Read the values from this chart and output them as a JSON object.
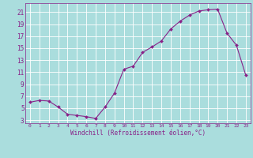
{
  "x": [
    0,
    1,
    2,
    3,
    4,
    5,
    6,
    7,
    8,
    9,
    10,
    11,
    12,
    13,
    14,
    15,
    16,
    17,
    18,
    19,
    20,
    21,
    22,
    23
  ],
  "y": [
    6.0,
    6.3,
    6.2,
    5.2,
    4.0,
    3.8,
    3.6,
    3.3,
    5.2,
    7.5,
    11.5,
    12.0,
    14.3,
    15.2,
    16.2,
    18.2,
    19.5,
    20.5,
    21.2,
    21.4,
    21.5,
    17.5,
    15.5,
    10.5
  ],
  "line_color": "#882288",
  "marker": "D",
  "marker_size": 2.0,
  "bg_color": "#aadddd",
  "grid_color": "#ffffff",
  "xlabel": "Windchill (Refroidissement éolien,°C)",
  "xlabel_color": "#882288",
  "tick_color": "#882288",
  "yticks": [
    3,
    5,
    7,
    9,
    11,
    13,
    15,
    17,
    19,
    21
  ],
  "xticks": [
    0,
    1,
    2,
    3,
    4,
    5,
    6,
    7,
    8,
    9,
    10,
    11,
    12,
    13,
    14,
    15,
    16,
    17,
    18,
    19,
    20,
    21,
    22,
    23
  ],
  "ylim": [
    2.5,
    22.5
  ],
  "xlim": [
    -0.5,
    23.5
  ]
}
